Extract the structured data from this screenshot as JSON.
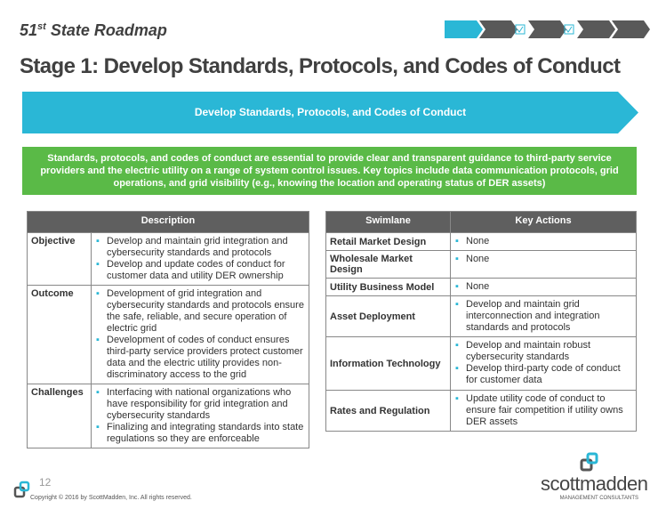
{
  "header": {
    "supertitle_main": "51",
    "supertitle_sup": "st",
    "supertitle_rest": " State Roadmap",
    "title": "Stage 1: Develop Standards, Protocols, and Codes of Conduct"
  },
  "progress": {
    "steps": [
      "active",
      "inactive",
      "check",
      "inactive",
      "check",
      "inactive",
      "inactive"
    ],
    "accent": "#2ab7d6",
    "inactive": "#595959"
  },
  "banner": {
    "text": "Develop Standards, Protocols, and Codes of Conduct",
    "color": "#2ab7d6"
  },
  "summary": {
    "text": "Standards, protocols, and codes of conduct are essential to provide clear and transparent guidance to third-party service providers and the electric utility on a range of system control issues. Key topics include data communication protocols, grid operations, and grid visibility (e.g., knowing the location and operating status of DER assets)",
    "color": "#5aba47"
  },
  "description_table": {
    "header": "Description",
    "rows": [
      {
        "label": "Objective",
        "items": [
          "Develop and maintain grid integration and cybersecurity standards and protocols",
          "Develop and update codes of conduct for customer data and utility DER ownership"
        ]
      },
      {
        "label": "Outcome",
        "items": [
          "Development of grid integration and cybersecurity standards and protocols ensure the safe, reliable, and secure operation of electric grid",
          "Development of codes of conduct ensures third-party service providers protect customer data and the electric utility provides non-discriminatory access to the grid"
        ]
      },
      {
        "label": "Challenges",
        "items": [
          "Interfacing with national organizations who have responsibility for grid integration and cybersecurity standards",
          "Finalizing and integrating standards into state regulations so they are enforceable"
        ]
      }
    ]
  },
  "swimlane_table": {
    "headers": [
      "Swimlane",
      "Key Actions"
    ],
    "rows": [
      {
        "label": "Retail Market Design",
        "items": [
          "None"
        ]
      },
      {
        "label": "Wholesale Market Design",
        "items": [
          "None"
        ]
      },
      {
        "label": "Utility Business Model",
        "items": [
          "None"
        ]
      },
      {
        "label": "Asset Deployment",
        "items": [
          "Develop and maintain grid interconnection and integration standards and protocols"
        ]
      },
      {
        "label": "Information Technology",
        "items": [
          "Develop and maintain robust cybersecurity standards",
          "Develop third-party code of conduct for customer data"
        ]
      },
      {
        "label": "Rates and Regulation",
        "items": [
          "Update utility code of conduct to ensure fair competition if utility owns DER assets"
        ]
      }
    ]
  },
  "footer": {
    "page": "12",
    "copyright": "Copyright © 2016 by ScottMadden, Inc. All rights reserved.",
    "logo_name": "scottmadden",
    "logo_tagline": "MANAGEMENT CONSULTANTS"
  }
}
